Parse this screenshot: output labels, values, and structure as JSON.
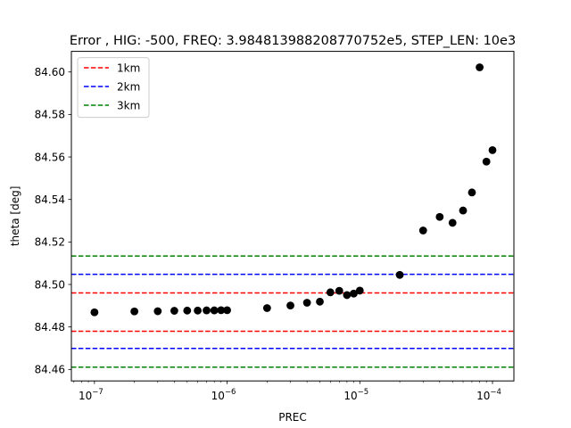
{
  "chart_data": {
    "type": "scatter",
    "title": "Error , HIG: -500, FREQ: 3.984813988208770752e5, STEP_LEN: 10e3",
    "xlabel": "PREC",
    "ylabel": "theta [deg]",
    "xscale": "log",
    "xlim": [
      6.7e-08,
      0.000145
    ],
    "ylim": [
      84.4546,
      84.6097
    ],
    "x_ticks": [
      {
        "value": 1e-07,
        "base": "10",
        "exp": "−7"
      },
      {
        "value": 1e-06,
        "base": "10",
        "exp": "−6"
      },
      {
        "value": 1e-05,
        "base": "10",
        "exp": "−5"
      },
      {
        "value": 0.0001,
        "base": "10",
        "exp": "−4"
      }
    ],
    "y_ticks": [
      {
        "value": 84.46,
        "label": "84.46"
      },
      {
        "value": 84.48,
        "label": "84.48"
      },
      {
        "value": 84.5,
        "label": "84.50"
      },
      {
        "value": 84.52,
        "label": "84.52"
      },
      {
        "value": 84.54,
        "label": "84.54"
      },
      {
        "value": 84.56,
        "label": "84.56"
      },
      {
        "value": 84.58,
        "label": "84.58"
      },
      {
        "value": 84.6,
        "label": "84.60"
      }
    ],
    "points": {
      "color": "#000000",
      "x": [
        1e-07,
        2e-07,
        3e-07,
        4e-07,
        5e-07,
        6e-07,
        7e-07,
        8e-07,
        9e-07,
        1e-06,
        2e-06,
        3e-06,
        4e-06,
        5e-06,
        6e-06,
        7e-06,
        8e-06,
        9e-06,
        1e-05,
        2e-05,
        3e-05,
        4e-05,
        5e-05,
        6e-05,
        7e-05,
        8e-05,
        9e-05,
        0.0001
      ],
      "y": [
        84.4869,
        84.4873,
        84.4874,
        84.4876,
        84.4877,
        84.4877,
        84.4878,
        84.4878,
        84.4879,
        84.4879,
        84.4889,
        84.4901,
        84.4914,
        84.4919,
        84.4963,
        84.497,
        84.495,
        84.4957,
        84.4971,
        84.5045,
        84.5254,
        84.5318,
        84.529,
        84.5348,
        84.5433,
        84.6022,
        84.5578,
        84.5632
      ]
    },
    "reference_lines": [
      {
        "label": "1km",
        "color": "#ff0000",
        "y": [
          84.478,
          84.496
        ]
      },
      {
        "label": "2km",
        "color": "#0000ff",
        "y": [
          84.4699,
          84.5048
        ]
      },
      {
        "label": "3km",
        "color": "#008000",
        "y": [
          84.4611,
          84.5134
        ]
      }
    ],
    "legend": {
      "position": "top-left",
      "entries": [
        "1km",
        "2km",
        "3km"
      ]
    }
  }
}
